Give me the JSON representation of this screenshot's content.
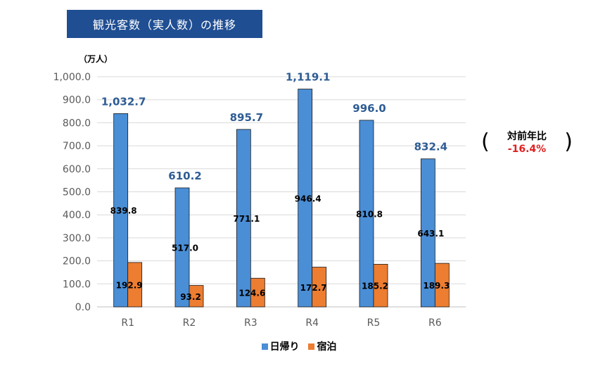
{
  "title": "観光客数（実人数）の推移",
  "unit": "（万人）",
  "yoy": {
    "label": "対前年比",
    "value": "-16.4%",
    "value_color": "#e02020"
  },
  "colors": {
    "day_trip": "#4a8ed6",
    "overnight": "#ed7d31",
    "total_label": "#2e5c94",
    "axis_text": "#595959"
  },
  "legend": [
    {
      "key": "day_trip",
      "label": "日帰り"
    },
    {
      "key": "overnight",
      "label": "宿泊"
    }
  ],
  "chart_data": {
    "type": "bar",
    "categories": [
      "R1",
      "R2",
      "R3",
      "R4",
      "R5",
      "R6"
    ],
    "series": [
      {
        "key": "day_trip",
        "name": "日帰り",
        "values": [
          839.8,
          517.0,
          771.1,
          946.4,
          810.8,
          643.1
        ],
        "labels": [
          "839.8",
          "517.0",
          "771.1",
          "946.4",
          "810.8",
          "643.1"
        ]
      },
      {
        "key": "overnight",
        "name": "宿泊",
        "values": [
          192.9,
          93.2,
          124.6,
          172.7,
          185.2,
          189.3
        ],
        "labels": [
          "192.9",
          "93.2",
          "124.6",
          "172.7",
          "185.2",
          "189.3"
        ]
      }
    ],
    "totals": [
      "1,032.7",
      "610.2",
      "895.7",
      "1,119.1",
      "996.0",
      "832.4"
    ],
    "ylim": [
      0,
      1000
    ],
    "yticks": [
      0,
      100,
      200,
      300,
      400,
      500,
      600,
      700,
      800,
      900,
      1000
    ],
    "ytick_labels": [
      "0.0",
      "100.0",
      "200.0",
      "300.0",
      "400.0",
      "500.0",
      "600.0",
      "700.0",
      "800.0",
      "900.0",
      "1,000.0"
    ],
    "grid": true,
    "legend_position": "bottom"
  }
}
